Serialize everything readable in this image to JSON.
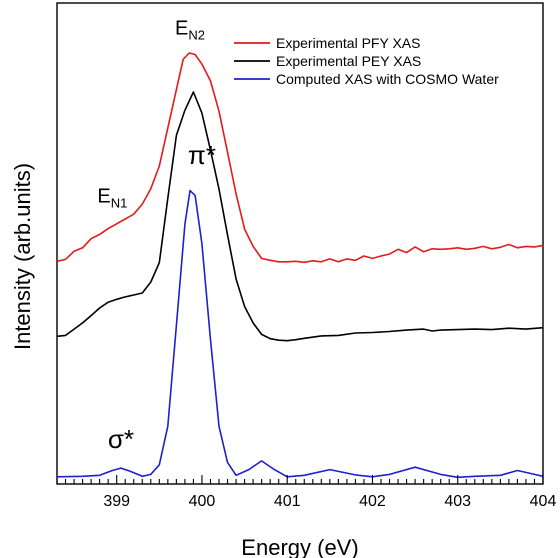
{
  "chart_data": {
    "type": "line",
    "title": "",
    "xlabel": "Energy (eV)",
    "ylabel": "Intensity (arb.units)",
    "xlim": [
      398.3,
      404.0
    ],
    "ylim": [
      0,
      1
    ],
    "x_ticks": [
      399,
      400,
      401,
      402,
      403,
      404
    ],
    "x_tick_labels": [
      "399",
      "400",
      "401",
      "402",
      "403",
      "404"
    ],
    "y_ticks_shown": false,
    "grid": false,
    "legend_position": "top-right",
    "series": [
      {
        "name": "Experimental PFY XAS",
        "color": "#e41a1c",
        "points": [
          [
            398.3,
            0.463
          ],
          [
            398.4,
            0.467
          ],
          [
            398.5,
            0.484
          ],
          [
            398.6,
            0.491
          ],
          [
            398.7,
            0.51
          ],
          [
            398.8,
            0.519
          ],
          [
            398.9,
            0.531
          ],
          [
            399.0,
            0.541
          ],
          [
            399.1,
            0.551
          ],
          [
            399.2,
            0.561
          ],
          [
            399.3,
            0.582
          ],
          [
            399.4,
            0.614
          ],
          [
            399.5,
            0.661
          ],
          [
            399.6,
            0.74
          ],
          [
            399.7,
            0.82
          ],
          [
            399.78,
            0.883
          ],
          [
            399.85,
            0.896
          ],
          [
            399.92,
            0.893
          ],
          [
            400.0,
            0.873
          ],
          [
            400.1,
            0.838
          ],
          [
            400.2,
            0.775
          ],
          [
            400.3,
            0.69
          ],
          [
            400.4,
            0.603
          ],
          [
            400.5,
            0.53
          ],
          [
            400.6,
            0.494
          ],
          [
            400.7,
            0.469
          ],
          [
            400.8,
            0.465
          ],
          [
            400.9,
            0.462
          ],
          [
            401.0,
            0.462
          ],
          [
            401.1,
            0.463
          ],
          [
            401.2,
            0.461
          ],
          [
            401.3,
            0.464
          ],
          [
            401.4,
            0.462
          ],
          [
            401.5,
            0.468
          ],
          [
            401.6,
            0.462
          ],
          [
            401.7,
            0.468
          ],
          [
            401.8,
            0.465
          ],
          [
            401.9,
            0.474
          ],
          [
            402.0,
            0.469
          ],
          [
            402.1,
            0.474
          ],
          [
            402.2,
            0.478
          ],
          [
            402.3,
            0.488
          ],
          [
            402.4,
            0.481
          ],
          [
            402.5,
            0.493
          ],
          [
            402.6,
            0.483
          ],
          [
            402.7,
            0.489
          ],
          [
            402.8,
            0.488
          ],
          [
            402.9,
            0.489
          ],
          [
            403.0,
            0.491
          ],
          [
            403.1,
            0.488
          ],
          [
            403.2,
            0.49
          ],
          [
            403.3,
            0.494
          ],
          [
            403.4,
            0.489
          ],
          [
            403.5,
            0.492
          ],
          [
            403.6,
            0.498
          ],
          [
            403.7,
            0.491
          ],
          [
            403.8,
            0.494
          ],
          [
            403.9,
            0.493
          ],
          [
            404.0,
            0.496
          ]
        ]
      },
      {
        "name": "Experimental PEY XAS",
        "color": "#000000",
        "points": [
          [
            398.3,
            0.307
          ],
          [
            398.4,
            0.309
          ],
          [
            398.5,
            0.322
          ],
          [
            398.6,
            0.335
          ],
          [
            398.7,
            0.35
          ],
          [
            398.8,
            0.366
          ],
          [
            398.9,
            0.378
          ],
          [
            399.0,
            0.384
          ],
          [
            399.1,
            0.389
          ],
          [
            399.2,
            0.393
          ],
          [
            399.3,
            0.397
          ],
          [
            399.4,
            0.42
          ],
          [
            399.5,
            0.46
          ],
          [
            399.6,
            0.594
          ],
          [
            399.7,
            0.725
          ],
          [
            399.8,
            0.777
          ],
          [
            399.9,
            0.815
          ],
          [
            400.0,
            0.771
          ],
          [
            400.1,
            0.694
          ],
          [
            400.2,
            0.613
          ],
          [
            400.3,
            0.518
          ],
          [
            400.4,
            0.426
          ],
          [
            400.5,
            0.369
          ],
          [
            400.6,
            0.335
          ],
          [
            400.7,
            0.311
          ],
          [
            400.8,
            0.302
          ],
          [
            400.9,
            0.299
          ],
          [
            401.0,
            0.298
          ],
          [
            401.1,
            0.3
          ],
          [
            401.2,
            0.303
          ],
          [
            401.4,
            0.308
          ],
          [
            401.6,
            0.309
          ],
          [
            401.8,
            0.314
          ],
          [
            402.0,
            0.315
          ],
          [
            402.2,
            0.317
          ],
          [
            402.4,
            0.32
          ],
          [
            402.6,
            0.322
          ],
          [
            402.7,
            0.318
          ],
          [
            402.8,
            0.32
          ],
          [
            403.0,
            0.321
          ],
          [
            403.2,
            0.322
          ],
          [
            403.4,
            0.321
          ],
          [
            403.6,
            0.324
          ],
          [
            403.8,
            0.322
          ],
          [
            404.0,
            0.325
          ]
        ]
      },
      {
        "name": "Computed XAS with COSMO Water",
        "color": "#1f1fd0",
        "points": [
          [
            398.3,
            0.015
          ],
          [
            398.6,
            0.016
          ],
          [
            398.8,
            0.018
          ],
          [
            398.95,
            0.028
          ],
          [
            399.05,
            0.033
          ],
          [
            399.15,
            0.027
          ],
          [
            399.3,
            0.016
          ],
          [
            399.4,
            0.02
          ],
          [
            399.5,
            0.04
          ],
          [
            399.6,
            0.12
          ],
          [
            399.7,
            0.33
          ],
          [
            399.8,
            0.54
          ],
          [
            399.86,
            0.61
          ],
          [
            399.92,
            0.6
          ],
          [
            400.0,
            0.5
          ],
          [
            400.1,
            0.3
          ],
          [
            400.2,
            0.12
          ],
          [
            400.3,
            0.045
          ],
          [
            400.4,
            0.018
          ],
          [
            400.55,
            0.03
          ],
          [
            400.7,
            0.048
          ],
          [
            400.85,
            0.03
          ],
          [
            401.0,
            0.015
          ],
          [
            401.2,
            0.018
          ],
          [
            401.5,
            0.03
          ],
          [
            401.8,
            0.019
          ],
          [
            402.0,
            0.015
          ],
          [
            402.2,
            0.02
          ],
          [
            402.5,
            0.035
          ],
          [
            402.8,
            0.02
          ],
          [
            403.0,
            0.014
          ],
          [
            403.2,
            0.016
          ],
          [
            403.5,
            0.018
          ],
          [
            403.7,
            0.028
          ],
          [
            403.85,
            0.022
          ],
          [
            404.0,
            0.016
          ]
        ]
      }
    ],
    "annotations": [
      {
        "base": "E",
        "sub": "N2",
        "x": 399.86,
        "y": 0.935
      },
      {
        "base": "E",
        "sub": "N1",
        "x": 398.95,
        "y": 0.585
      },
      {
        "base": "π*",
        "sub": "",
        "x": 400.0,
        "y": 0.665
      },
      {
        "base": "σ*",
        "sub": "",
        "x": 399.05,
        "y": 0.075
      }
    ]
  }
}
